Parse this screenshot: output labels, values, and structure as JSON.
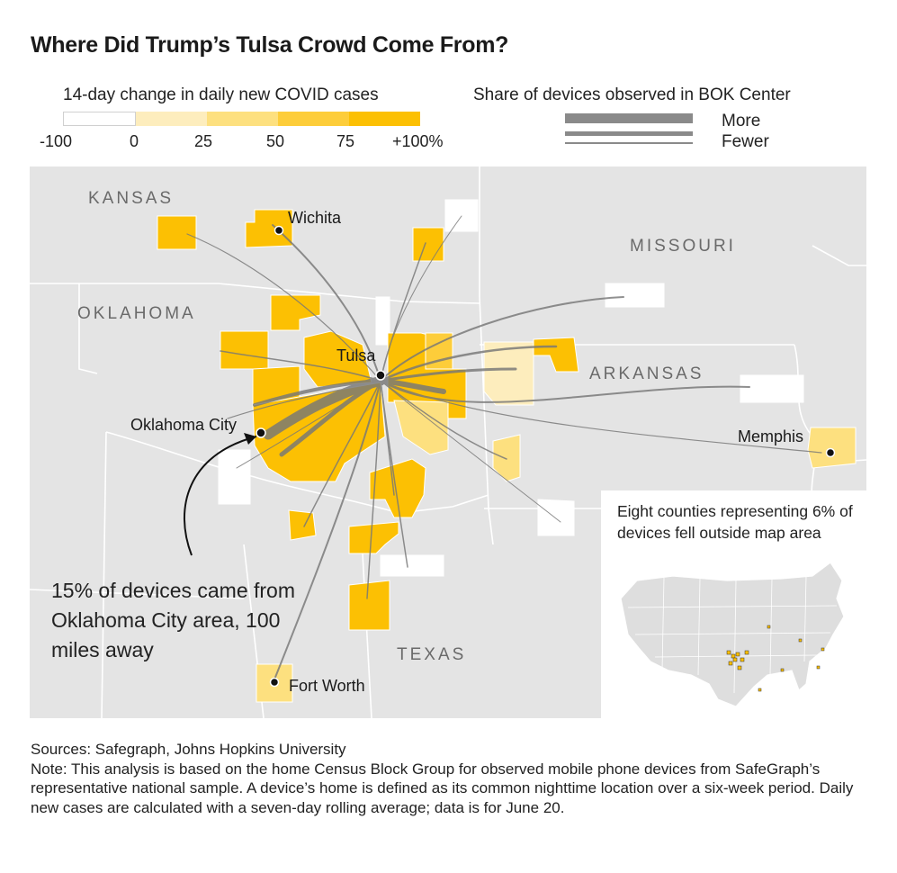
{
  "title": "Where Did Trump’s Tulsa Crowd Come From?",
  "legend": {
    "covid_title": "14-day change in daily new COVID cases",
    "ticks": [
      "-100",
      "0",
      "25",
      "50",
      "75",
      "+100%"
    ],
    "colors": [
      "#ffffff",
      "#fdedbd",
      "#fde07f",
      "#fdcd3a",
      "#fcc003"
    ],
    "share_title": "Share of devices observed in BOK Center",
    "share_more": "More",
    "share_fewer": "Fewer"
  },
  "map": {
    "states": {
      "kansas": "KANSAS",
      "missouri": "MISSOURI",
      "oklahoma": "OKLAHOMA",
      "arkansas": "ARKANSAS",
      "texas": "TEXAS"
    },
    "cities": {
      "wichita": "Wichita",
      "tulsa": "Tulsa",
      "okc": "Oklahoma City",
      "memphis": "Memphis",
      "fort_worth": "Fort Worth"
    },
    "inset_note": "Eight counties representing 6% of devices fell outside map area",
    "annotation": "15% of devices came from Oklahoma City area, 100 miles away"
  },
  "footer": {
    "sources": "Sources: Safegraph, Johns Hopkins University",
    "note": "Note: This analysis is based on the home Census Block Group for observed mobile phone devices from SafeGraph’s representative national sample. A device’s home is defined as its common nighttime location over a six-week period. Daily new cases are calculated with a seven-day rolling average; data is for June 20."
  }
}
